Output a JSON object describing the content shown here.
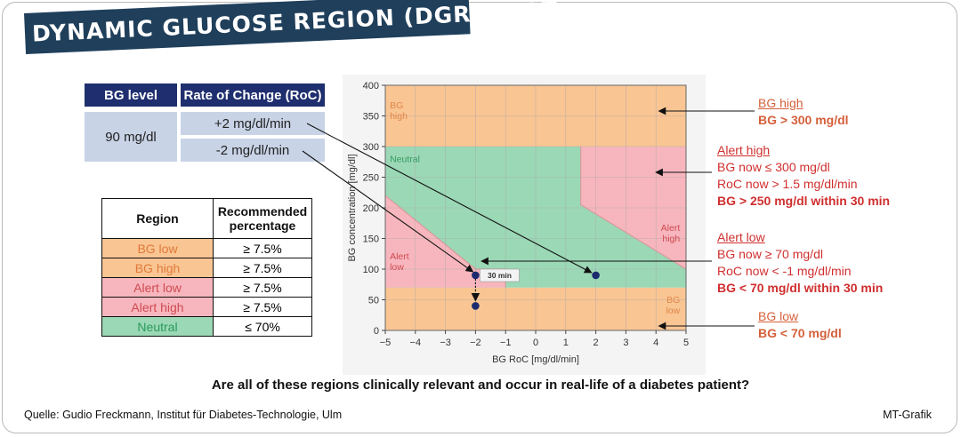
{
  "title": "DYNAMIC GLUCOSE REGION (DGR) PLOT",
  "bg_table": {
    "col1": "BG level",
    "col2": "Rate of Change (RoC)",
    "bg_value": "90 mg/dl",
    "roc_up": "+2 mg/dl/min",
    "roc_down": "-2 mg/dl/min"
  },
  "region_table": {
    "col1": "Region",
    "col2": "Recommended percentage",
    "rows": [
      {
        "region": "BG low",
        "pct": "≥ 7.5%"
      },
      {
        "region": "BG high",
        "pct": "≥ 7.5%"
      },
      {
        "region": "Alert low",
        "pct": "≥ 7.5%"
      },
      {
        "region": "Alert high",
        "pct": "≥ 7.5%"
      },
      {
        "region": "Neutral",
        "pct": "≤ 70%"
      }
    ]
  },
  "annotations": {
    "bg_high": {
      "head": "BG high",
      "lines": [],
      "bold": "BG > 300 mg/dl"
    },
    "alert_high": {
      "head": "Alert high",
      "lines": [
        "BG now   ≤ 300 mg/dl",
        "RoC now > 1.5 mg/dl/min"
      ],
      "bold": "BG > 250 mg/dl within 30 min"
    },
    "alert_low": {
      "head": "Alert low",
      "lines": [
        "BG now    ≥ 70 mg/dl",
        "RoC now < -1 mg/dl/min"
      ],
      "bold": "BG < 70 mg/dl within 30 min"
    },
    "bg_low": {
      "head": "BG low",
      "lines": [],
      "bold": "BG < 70 mg/dl"
    }
  },
  "question": "Are all of these regions clinically relevant and occur in real-life of a diabetes patient?",
  "source": "Quelle: Gudio Freckmann, Institut für Diabetes-Technologie, Ulm",
  "credit": "MT-Grafik",
  "colors": {
    "banner": "#1f3f5b",
    "bg_region": "#f9c593",
    "alert_region": "#f7b6bd",
    "neutral_region": "#9bd8b6",
    "point": "#1c2a6e"
  },
  "chart_data": {
    "type": "scatter",
    "xlabel": "BG RoC [mg/dl/min]",
    "ylabel": "BG concentration [mg/dl]",
    "xlim": [
      -5,
      5
    ],
    "ylim": [
      0,
      400
    ],
    "x_ticks": [
      -5,
      -4,
      -3,
      -2,
      -1,
      0,
      1,
      2,
      3,
      4,
      5
    ],
    "y_ticks": [
      0,
      50,
      100,
      150,
      200,
      250,
      300,
      350,
      400
    ],
    "grid": true,
    "region_labels": {
      "bg_high": "BG\nhigh",
      "neutral": "Neutral",
      "alert_high": "Alert\nhigh",
      "alert_low": "Alert\nlow",
      "bg_low": "BG\nlow"
    },
    "regions": [
      {
        "name": "BG high",
        "polygon": [
          [
            -5,
            300
          ],
          [
            5,
            300
          ],
          [
            5,
            400
          ],
          [
            -5,
            400
          ]
        ]
      },
      {
        "name": "BG low",
        "polygon": [
          [
            -5,
            0
          ],
          [
            5,
            0
          ],
          [
            5,
            70
          ],
          [
            -5,
            70
          ]
        ]
      },
      {
        "name": "Neutral",
        "polygon": [
          [
            -5,
            70
          ],
          [
            5,
            70
          ],
          [
            5,
            300
          ],
          [
            -5,
            300
          ]
        ]
      },
      {
        "name": "Alert high",
        "polygon": [
          [
            1.5,
            300
          ],
          [
            5,
            300
          ],
          [
            5,
            100
          ],
          [
            1.5,
            205
          ]
        ]
      },
      {
        "name": "Alert low",
        "polygon": [
          [
            -5,
            70
          ],
          [
            -1,
            70
          ],
          [
            -1,
            100
          ],
          [
            -2,
            100
          ],
          [
            -5,
            220
          ]
        ]
      }
    ],
    "points": [
      {
        "x": -2,
        "y": 90
      },
      {
        "x": -2,
        "y": 40
      },
      {
        "x": 2,
        "y": 90
      }
    ],
    "annotation_label": "30 min"
  }
}
